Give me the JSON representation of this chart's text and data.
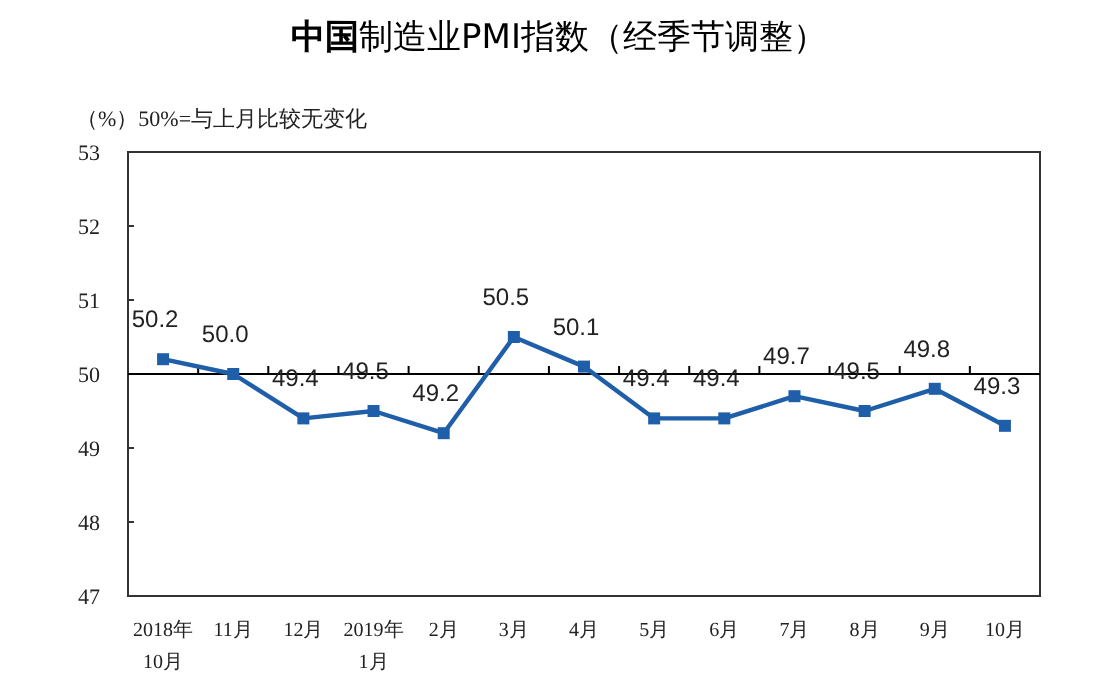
{
  "chart_data": {
    "type": "line",
    "title": "**中国**制造业PMI指数（经季节调整）",
    "subtitle": "（%）50%=与上月比较无变化",
    "categories": [
      "2018年\n10月",
      "11月",
      "12月",
      "2019年\n1月",
      "2月",
      "3月",
      "4月",
      "5月",
      "6月",
      "7月",
      "8月",
      "9月",
      "10月"
    ],
    "series": [
      {
        "color": "#1f5ea8",
        "values": [
          50.2,
          50.0,
          49.4,
          49.5,
          49.2,
          50.5,
          50.1,
          49.4,
          49.4,
          49.7,
          49.5,
          49.8,
          49.3
        ],
        "value_labels": [
          "50.2",
          "50.0",
          "49.4",
          "49.5",
          "49.2",
          "50.5",
          "50.1",
          "49.4",
          "49.4",
          "49.7",
          "49.5",
          "49.8",
          "49.3"
        ]
      }
    ],
    "ylim": [
      47,
      53
    ],
    "yticks": [
      47,
      48,
      49,
      50,
      51,
      52,
      53
    ],
    "ref_lines": [
      {
        "axis": "y",
        "value": 50,
        "color": "#000000"
      }
    ],
    "marker": "square",
    "line_style": "solid"
  }
}
